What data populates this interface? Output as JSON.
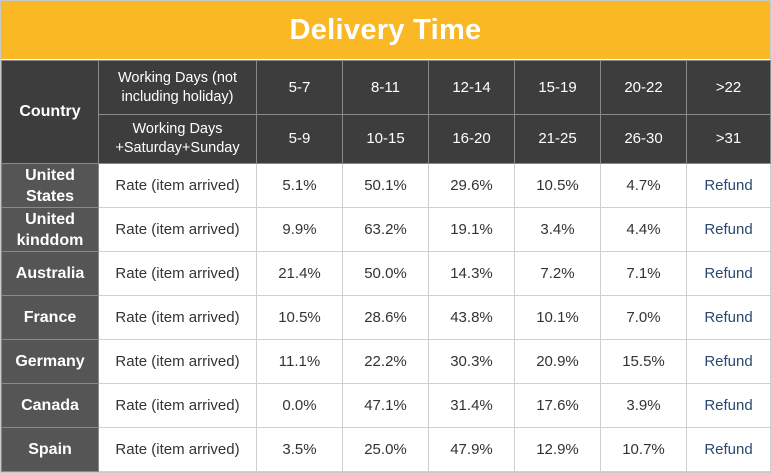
{
  "title": "Delivery Time",
  "header": {
    "country_label": "Country",
    "row1_label_a": "Working Days (not",
    "row1_label_b": "including holiday)",
    "row2_label_a": "Working Days",
    "row2_label_b": "+Saturday+Sunday",
    "working_days": [
      "5-7",
      "8-11",
      "12-14",
      "15-19",
      "20-22",
      ">22"
    ],
    "calendar_days": [
      "5-9",
      "10-15",
      "16-20",
      "21-25",
      "26-30",
      ">31"
    ]
  },
  "rows": [
    {
      "country_a": "United",
      "country_b": "States",
      "label": "Rate (item arrived)",
      "values": [
        "5.1%",
        "50.1%",
        "29.6%",
        "10.5%",
        "4.7%",
        "Refund"
      ]
    },
    {
      "country_a": "United",
      "country_b": "kinddom",
      "label": "Rate (item arrived)",
      "values": [
        "9.9%",
        "63.2%",
        "19.1%",
        "3.4%",
        "4.4%",
        "Refund"
      ]
    },
    {
      "country_a": "Australia",
      "country_b": "",
      "label": "Rate (item arrived)",
      "values": [
        "21.4%",
        "50.0%",
        "14.3%",
        "7.2%",
        "7.1%",
        "Refund"
      ]
    },
    {
      "country_a": "France",
      "country_b": "",
      "label": "Rate (item arrived)",
      "values": [
        "10.5%",
        "28.6%",
        "43.8%",
        "10.1%",
        "7.0%",
        "Refund"
      ]
    },
    {
      "country_a": "Germany",
      "country_b": "",
      "label": "Rate (item arrived)",
      "values": [
        "11.1%",
        "22.2%",
        "30.3%",
        "20.9%",
        "15.5%",
        "Refund"
      ]
    },
    {
      "country_a": "Canada",
      "country_b": "",
      "label": "Rate (item arrived)",
      "values": [
        "0.0%",
        "47.1%",
        "31.4%",
        "17.6%",
        "3.9%",
        "Refund"
      ]
    },
    {
      "country_a": "Spain",
      "country_b": "",
      "label": "Rate (item arrived)",
      "values": [
        "3.5%",
        "25.0%",
        "47.9%",
        "12.9%",
        "10.7%",
        "Refund"
      ]
    }
  ],
  "colors": {
    "title_bar": "#f9b824",
    "header_bg": "#3d3d3d",
    "country_bg": "#555555",
    "refund_text": "#2b4a72"
  }
}
